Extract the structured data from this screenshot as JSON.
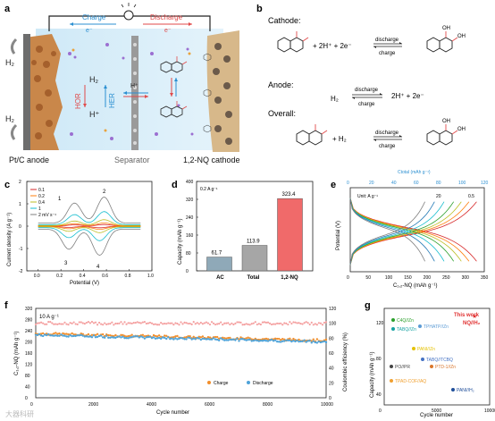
{
  "panel_a": {
    "label": "a",
    "charge": "Charge",
    "discharge": "Discharge",
    "electron_left": "e⁻",
    "electron_right": "e⁻",
    "h2_top": "H₂",
    "h2_bottom": "H₂",
    "h2_center": "H₂",
    "hplus_center": "H⁺",
    "hor": "HOR",
    "her": "HER",
    "hplus_separator": "H⁺",
    "anode_label": "Pt/C anode",
    "separator_label": "Separator",
    "cathode_label": "1,2-NQ cathode"
  },
  "panel_b": {
    "label": "b",
    "cathode": "Cathode:",
    "anode": "Anode:",
    "overall": "Overall:",
    "reaction_cathode_mid": "+ 2H⁺ + 2e⁻",
    "reaction_anode_left": "H₂",
    "reaction_anode_right": "2H⁺ + 2e⁻",
    "reaction_overall_mid": "+ H₂",
    "discharge": "discharge",
    "charge": "charge",
    "oh": "OH"
  },
  "panel_c": {
    "label": "c",
    "chart_data": {
      "type": "line",
      "xlabel": "Potential (V)",
      "ylabel": "Current density (A g⁻¹)",
      "xlim": [
        -0.1,
        1.0
      ],
      "ylim": [
        -2,
        2
      ],
      "xticks": [
        "0.0",
        "0.2",
        "0.4",
        "0.6",
        "0.8",
        "1.0"
      ],
      "yticks": [
        "-2",
        "-1",
        "0",
        "1",
        "2"
      ],
      "legend_title": "2 mV s⁻¹",
      "peak_labels": [
        "1",
        "2",
        "3",
        "4"
      ],
      "series": [
        {
          "name": "0.1",
          "color": "#d62728",
          "scale": 0.05
        },
        {
          "name": "0.2",
          "color": "#ff7f0e",
          "scale": 0.1
        },
        {
          "name": "0.4",
          "color": "#bcbd22",
          "scale": 0.2
        },
        {
          "name": "1",
          "color": "#17becf",
          "scale": 0.45
        },
        {
          "name": "2 mV s⁻¹",
          "color": "#7f7f7f",
          "scale": 0.9
        }
      ]
    }
  },
  "panel_d": {
    "label": "d",
    "chart_data": {
      "type": "bar",
      "note": "0.2 A g⁻¹",
      "categories": [
        "AC",
        "Total",
        "1,2-NQ"
      ],
      "values": [
        61.7,
        113.9,
        323.4
      ],
      "value_labels": [
        "61.7",
        "113.9",
        "323.4"
      ],
      "colors": [
        "#8fa9b8",
        "#a6a6a6",
        "#f06a6a"
      ],
      "ylabel": "Capacity (mAh g⁻¹)",
      "ylim": [
        0,
        400
      ],
      "yticks": [
        "0",
        "80",
        "160",
        "240",
        "320",
        "400"
      ]
    }
  },
  "panel_e": {
    "label": "e",
    "chart_data": {
      "type": "line",
      "unit_note": "Unit: A g⁻¹",
      "xlabel": "C₁,₂-NQ (mAh g⁻¹)",
      "x2label": "Ctotal (mAh g⁻¹)",
      "ylabel": "Potential (V)",
      "xlim": [
        0,
        350
      ],
      "x2lim": [
        0,
        120
      ],
      "ylim": [
        -0.2,
        1.0
      ],
      "xticks": [
        "0",
        "50",
        "100",
        "150",
        "200",
        "250",
        "300",
        "350"
      ],
      "x2ticks": [
        "0",
        "20",
        "40",
        "60",
        "80",
        "100",
        "120"
      ],
      "rate_labels": [
        "20",
        "0.5"
      ],
      "series_capacity": [
        330,
        310,
        290,
        270,
        245,
        220,
        195
      ],
      "colors": [
        "#d62728",
        "#ff7f0e",
        "#bcbd22",
        "#2ca02c",
        "#17becf",
        "#1f77b4",
        "#7f7f7f"
      ]
    }
  },
  "panel_f": {
    "label": "f",
    "chart_data": {
      "type": "scatter",
      "note": "10 A g⁻¹",
      "xlabel": "Cycle number",
      "ylabel": "C₁,₂-NQ (mAh g⁻¹)",
      "y2label": "Coulombic efficiency (%)",
      "xlim": [
        0,
        10000
      ],
      "ylim": [
        0,
        320
      ],
      "y2lim": [
        0,
        120
      ],
      "xticks": [
        "0",
        "2000",
        "4000",
        "6000",
        "8000",
        "10000"
      ],
      "yticks": [
        "0",
        "40",
        "80",
        "120",
        "160",
        "200",
        "240",
        "280",
        "320"
      ],
      "y2ticks": [
        "0",
        "20",
        "40",
        "60",
        "80",
        "100",
        "120"
      ],
      "series": [
        {
          "name": "Charge",
          "color": "#f28e2b",
          "start": 230,
          "end": 205
        },
        {
          "name": "Discharge",
          "color": "#4ea3d9",
          "start": 225,
          "end": 200
        },
        {
          "name": "CE",
          "color": "#f4a0a0",
          "value": 100
        }
      ],
      "legend": [
        "Charge",
        "Discharge"
      ]
    }
  },
  "panel_g": {
    "label": "g",
    "chart_data": {
      "type": "scatter",
      "xlabel": "Cycle number",
      "ylabel": "Capacity (mAh g⁻¹)",
      "xlim": [
        0,
        10000
      ],
      "xticks": [
        "0",
        "5000",
        "10000"
      ],
      "yticks": [
        "40",
        "80",
        "120"
      ],
      "points": [
        {
          "name": "This work",
          "color": "#e03030"
        },
        {
          "name": "NQ//H₂",
          "color": "#e03030"
        },
        {
          "name": "C4Q//Zn",
          "color": "#2ca02c"
        },
        {
          "name": "TABQ//Zn",
          "color": "#17a2a2"
        },
        {
          "name": "TPHATP//Zn",
          "color": "#5b9bd5"
        },
        {
          "name": "PANI//Zn",
          "color": "#e5c100"
        },
        {
          "name": "TABQ//TCBQ",
          "color": "#4472c4"
        },
        {
          "name": "PO//PR",
          "color": "#444444"
        },
        {
          "name": "PTD-1//Zn",
          "color": "#d9762b"
        },
        {
          "name": "TPAD-COF//AQ",
          "color": "#f0a030"
        },
        {
          "name": "PANI//H₂",
          "color": "#1f4e9a"
        }
      ]
    }
  },
  "watermark": "大器科研"
}
